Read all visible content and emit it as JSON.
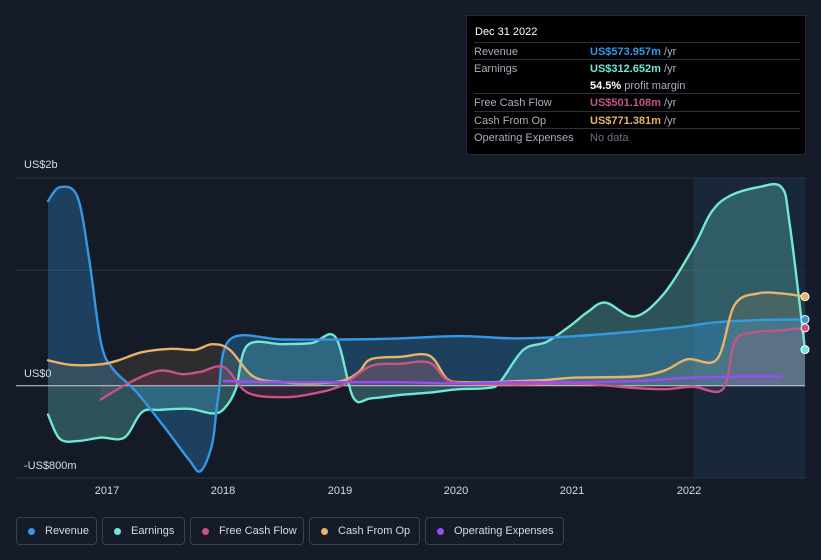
{
  "chart_data": {
    "type": "area",
    "title": "",
    "ylabel": "",
    "xlabel": "",
    "y_axis_labels": [
      "US$2b",
      "US$0",
      "-US$800m"
    ],
    "ylim": [
      -800,
      1800
    ],
    "xlim": [
      2016.5,
      2022.95
    ],
    "x_ticks": [
      2017,
      2018,
      2019,
      2020,
      2021,
      2022
    ],
    "x_tick_labels": [
      "2017",
      "2018",
      "2019",
      "2020",
      "2021",
      "2022"
    ],
    "highlight_start": 2022.0,
    "series": [
      {
        "name": "Earnings",
        "color": "#71e7d6",
        "x": [
          2016.5,
          2016.6,
          2016.75,
          2016.95,
          2017.15,
          2017.3,
          2017.45,
          2017.7,
          2017.9,
          2018.0,
          2018.1,
          2018.2,
          2018.5,
          2018.75,
          2018.95,
          2019.1,
          2019.25,
          2019.5,
          2019.75,
          2020.0,
          2020.25,
          2020.35,
          2020.55,
          2020.75,
          2020.95,
          2021.1,
          2021.25,
          2021.5,
          2021.75,
          2022.0,
          2022.15,
          2022.3,
          2022.55,
          2022.75,
          2022.82,
          2022.95
        ],
        "values": [
          -250,
          -460,
          -480,
          -450,
          -450,
          -230,
          -210,
          -200,
          -240,
          -200,
          -30,
          350,
          360,
          370,
          420,
          -100,
          -110,
          -80,
          -60,
          -30,
          -20,
          30,
          310,
          380,
          520,
          640,
          720,
          600,
          800,
          1200,
          1500,
          1640,
          1720,
          1720,
          1400,
          312.65
        ]
      },
      {
        "name": "Revenue",
        "color": "#3498e5",
        "x": [
          2016.5,
          2016.6,
          2016.75,
          2016.85,
          2016.95,
          2017.05,
          2017.25,
          2017.5,
          2017.7,
          2017.8,
          2017.9,
          2017.95,
          2018.05,
          2018.5,
          2019.0,
          2019.5,
          2020.0,
          2020.5,
          2021.0,
          2021.5,
          2021.9,
          2022.2,
          2022.6,
          2022.95
        ],
        "values": [
          1600,
          1720,
          1640,
          1100,
          380,
          150,
          -50,
          -370,
          -640,
          -740,
          -500,
          -100,
          400,
          400,
          400,
          410,
          430,
          410,
          430,
          470,
          510,
          550,
          570,
          573.96
        ]
      },
      {
        "name": "Cash From Op",
        "color": "#e8b36a",
        "x": [
          2016.5,
          2016.7,
          2016.95,
          2017.1,
          2017.3,
          2017.55,
          2017.75,
          2017.9,
          2018.05,
          2018.25,
          2018.5,
          2018.75,
          2019.0,
          2019.15,
          2019.25,
          2019.5,
          2019.75,
          2019.9,
          2020.05,
          2020.3,
          2020.5,
          2020.75,
          2021.0,
          2021.5,
          2021.75,
          2021.95,
          2022.2,
          2022.35,
          2022.55,
          2022.75,
          2022.95
        ],
        "values": [
          220,
          180,
          185,
          220,
          290,
          320,
          310,
          360,
          310,
          80,
          30,
          20,
          40,
          120,
          230,
          250,
          260,
          60,
          30,
          30,
          40,
          50,
          70,
          80,
          130,
          230,
          230,
          700,
          800,
          800,
          771.38
        ]
      },
      {
        "name": "Free Cash Flow",
        "color": "#c55587",
        "x": [
          2016.95,
          2017.2,
          2017.45,
          2017.65,
          2017.8,
          2018.0,
          2018.2,
          2018.5,
          2018.75,
          2019.0,
          2019.25,
          2019.5,
          2019.75,
          2019.9,
          2020.1,
          2020.5,
          2021.0,
          2021.5,
          2021.75,
          2022.0,
          2022.25,
          2022.35,
          2022.5,
          2022.75,
          2022.95
        ],
        "values": [
          -120,
          30,
          130,
          100,
          120,
          160,
          -60,
          -100,
          -70,
          0,
          170,
          190,
          200,
          50,
          20,
          10,
          20,
          -20,
          -30,
          -10,
          -30,
          380,
          460,
          480,
          501.11
        ]
      },
      {
        "name": "Operating Expenses",
        "color": "#9b4ef0",
        "x": [
          2018.0,
          2018.5,
          2019.0,
          2019.5,
          2020.0,
          2020.5,
          2021.0,
          2021.5,
          2022.0,
          2022.4,
          2022.75
        ],
        "values": [
          40,
          30,
          30,
          30,
          20,
          30,
          30,
          40,
          70,
          80,
          80
        ]
      }
    ]
  },
  "tooltip": {
    "date": "Dec 31 2022",
    "rows": [
      {
        "label": "Revenue",
        "value": "US$573.957m",
        "unit": "/yr",
        "color": "#3498e5"
      },
      {
        "label": "Earnings",
        "value": "US$312.652m",
        "unit": "/yr",
        "color": "#71e7d6"
      },
      {
        "label": "",
        "value": "54.5%",
        "unit": "profit margin",
        "color": "#ffffff"
      },
      {
        "label": "Free Cash Flow",
        "value": "US$501.108m",
        "unit": "/yr",
        "color": "#c55587"
      },
      {
        "label": "Cash From Op",
        "value": "US$771.381m",
        "unit": "/yr",
        "color": "#e8b36a"
      },
      {
        "label": "Operating Expenses",
        "value": "No data",
        "unit": "",
        "color": "#6c7380"
      }
    ]
  },
  "legend": [
    {
      "label": "Revenue",
      "color": "#3498e5"
    },
    {
      "label": "Earnings",
      "color": "#71e7d6"
    },
    {
      "label": "Free Cash Flow",
      "color": "#c55587"
    },
    {
      "label": "Cash From Op",
      "color": "#e8b36a"
    },
    {
      "label": "Operating Expenses",
      "color": "#9b4ef0"
    }
  ]
}
